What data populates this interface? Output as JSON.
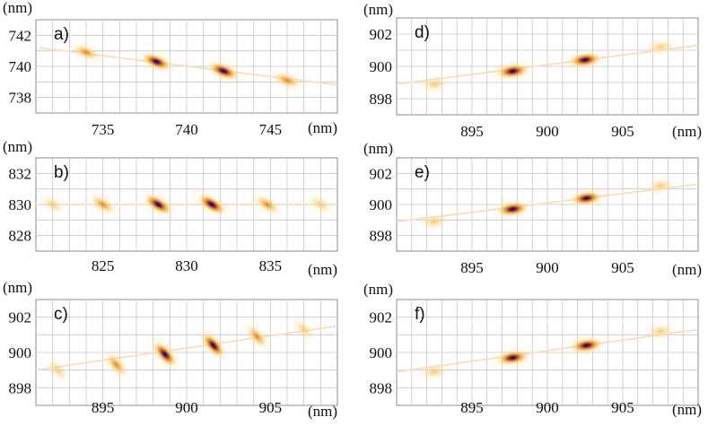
{
  "chart_data": [
    {
      "type": "heatmap",
      "panel": "a)",
      "xlabel": "(nm)",
      "ylabel": "(nm)",
      "xlim": [
        731,
        749
      ],
      "ylim": [
        737,
        743
      ],
      "xticks": [
        735,
        740,
        745
      ],
      "yticks": [
        738,
        740,
        742
      ],
      "xtick_labels": [
        "735",
        "740",
        "745"
      ],
      "ytick_labels": [
        "738",
        "740",
        "742"
      ],
      "grid": true,
      "colormap": [
        "#ffffff",
        "#fbe7b5",
        "#f5b74d",
        "#e07a12",
        "#5a1f6e",
        "#10064a"
      ],
      "baseline": [
        [
          731.2,
          741.2
        ],
        [
          749,
          738.8
        ]
      ],
      "peaks": [
        {
          "x": 734.0,
          "y": 740.9,
          "intensity": 0.55
        },
        {
          "x": 738.2,
          "y": 740.3,
          "intensity": 0.9
        },
        {
          "x": 742.2,
          "y": 739.7,
          "intensity": 0.95
        },
        {
          "x": 746.0,
          "y": 739.1,
          "intensity": 0.6
        }
      ]
    },
    {
      "type": "heatmap",
      "panel": "b)",
      "xlabel": "(nm)",
      "ylabel": "(nm)",
      "xlim": [
        821,
        839
      ],
      "ylim": [
        827,
        833
      ],
      "xticks": [
        825,
        830,
        835
      ],
      "yticks": [
        828,
        830,
        832
      ],
      "xtick_labels": [
        "825",
        "830",
        "835"
      ],
      "ytick_labels": [
        "828",
        "830",
        "832"
      ],
      "grid": true,
      "baseline": [
        [
          821,
          830
        ],
        [
          839,
          830
        ]
      ],
      "peaks": [
        {
          "x": 822.0,
          "y": 830.0,
          "intensity": 0.2
        },
        {
          "x": 825.0,
          "y": 830.0,
          "intensity": 0.6
        },
        {
          "x": 828.3,
          "y": 830.0,
          "intensity": 0.95
        },
        {
          "x": 831.5,
          "y": 830.0,
          "intensity": 0.95
        },
        {
          "x": 834.8,
          "y": 830.0,
          "intensity": 0.6
        },
        {
          "x": 838.0,
          "y": 830.0,
          "intensity": 0.25
        }
      ]
    },
    {
      "type": "heatmap",
      "panel": "c)",
      "xlabel": "(nm)",
      "ylabel": "(nm)",
      "xlim": [
        891,
        909
      ],
      "ylim": [
        897,
        903
      ],
      "xticks": [
        895,
        900,
        905
      ],
      "yticks": [
        898,
        900,
        902
      ],
      "xtick_labels": [
        "895",
        "900",
        "905"
      ],
      "ytick_labels": [
        "898",
        "900",
        "902"
      ],
      "grid": true,
      "baseline": [
        [
          891,
          899
        ],
        [
          909,
          901.5
        ]
      ],
      "peaks": [
        {
          "x": 892.3,
          "y": 899.0,
          "intensity": 0.25
        },
        {
          "x": 895.8,
          "y": 899.3,
          "intensity": 0.7
        },
        {
          "x": 898.7,
          "y": 899.9,
          "intensity": 0.95
        },
        {
          "x": 901.6,
          "y": 900.4,
          "intensity": 0.9
        },
        {
          "x": 904.2,
          "y": 900.9,
          "intensity": 0.6
        },
        {
          "x": 907.0,
          "y": 901.3,
          "intensity": 0.25
        }
      ]
    },
    {
      "type": "heatmap",
      "panel": "d)",
      "xlabel": "(nm)",
      "ylabel": "(nm)",
      "xlim": [
        890,
        910
      ],
      "ylim": [
        897,
        903
      ],
      "xticks": [
        895,
        900,
        905
      ],
      "yticks": [
        898,
        900,
        902
      ],
      "xtick_labels": [
        "895",
        "900",
        "905"
      ],
      "ytick_labels": [
        "898",
        "900",
        "902"
      ],
      "grid": true,
      "baseline": [
        [
          890,
          898.9
        ],
        [
          910,
          901.3
        ]
      ],
      "peaks": [
        {
          "x": 892.5,
          "y": 898.9,
          "intensity": 0.35
        },
        {
          "x": 897.7,
          "y": 899.7,
          "intensity": 1.0
        },
        {
          "x": 902.5,
          "y": 900.4,
          "intensity": 1.0
        },
        {
          "x": 907.5,
          "y": 901.2,
          "intensity": 0.35
        }
      ]
    },
    {
      "type": "heatmap",
      "panel": "e)",
      "xlabel": "(nm)",
      "ylabel": "(nm)",
      "xlim": [
        890,
        910
      ],
      "ylim": [
        897,
        903
      ],
      "xticks": [
        895,
        900,
        905
      ],
      "yticks": [
        898,
        900,
        902
      ],
      "xtick_labels": [
        "895",
        "900",
        "905"
      ],
      "ytick_labels": [
        "898",
        "900",
        "902"
      ],
      "grid": true,
      "baseline": [
        [
          890,
          898.9
        ],
        [
          910,
          901.3
        ]
      ],
      "peaks": [
        {
          "x": 892.5,
          "y": 898.9,
          "intensity": 0.35
        },
        {
          "x": 897.7,
          "y": 899.7,
          "intensity": 0.95
        },
        {
          "x": 902.6,
          "y": 900.4,
          "intensity": 0.9
        },
        {
          "x": 907.5,
          "y": 901.2,
          "intensity": 0.35
        }
      ]
    },
    {
      "type": "heatmap",
      "panel": "f)",
      "xlabel": "(nm)",
      "ylabel": "(nm)",
      "xlim": [
        890,
        910
      ],
      "ylim": [
        897,
        903
      ],
      "xticks": [
        895,
        900,
        905
      ],
      "yticks": [
        898,
        900,
        902
      ],
      "xtick_labels": [
        "895",
        "900",
        "905"
      ],
      "ytick_labels": [
        "898",
        "900",
        "902"
      ],
      "grid": true,
      "baseline": [
        [
          890,
          898.9
        ],
        [
          910,
          901.3
        ]
      ],
      "peaks": [
        {
          "x": 892.5,
          "y": 898.9,
          "intensity": 0.3
        },
        {
          "x": 897.7,
          "y": 899.7,
          "intensity": 0.95
        },
        {
          "x": 902.6,
          "y": 900.4,
          "intensity": 0.95
        },
        {
          "x": 907.5,
          "y": 901.2,
          "intensity": 0.35
        }
      ]
    }
  ]
}
